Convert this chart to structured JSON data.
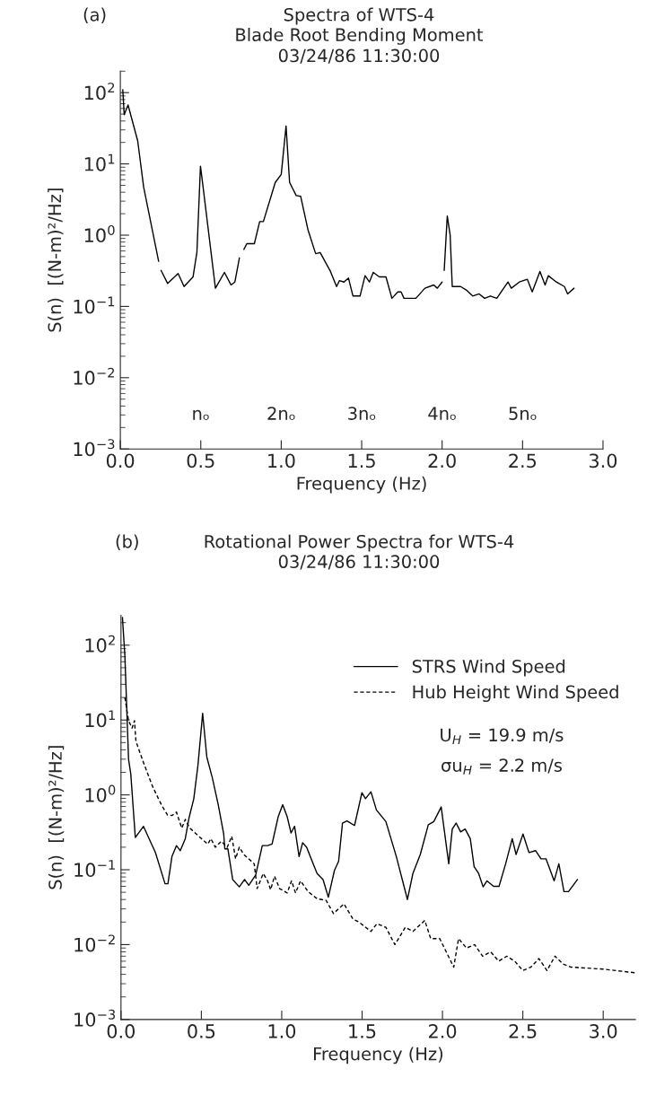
{
  "chart_data": [
    {
      "type": "line",
      "title": "Spectra of WTS-4",
      "subtitle": "Blade Root Bending Moment\n03/24/86 11:30:00",
      "xlabel": "Frequency (Hz)",
      "ylabel": "S(n)  [(N-m)²/Hz]",
      "annotations": [
        "(a)",
        "nₒ",
        "2nₒ",
        "3nₒ",
        "4nₒ",
        "5nₒ"
      ],
      "series": [
        {
          "color": "#000000",
          "x": [
            0.015,
            0.024,
            0.048,
            0.108,
            0.145,
            0.238,
            0.245,
            0.253,
            0.294,
            0.359,
            0.396,
            0.452,
            0.476,
            0.498,
            0.508,
            0.591,
            0.647,
            0.688,
            0.712,
            0.74,
            0.754,
            0.768,
            0.786,
            0.833,
            0.866,
            0.889,
            0.963,
            1.0,
            1.03,
            1.052,
            1.093,
            1.121,
            1.167,
            1.214,
            1.242,
            1.306,
            1.344,
            1.362,
            1.39,
            1.418,
            1.446,
            1.49,
            1.521,
            1.548,
            1.572,
            1.61,
            1.651,
            1.688,
            1.725,
            1.745,
            1.763,
            1.837,
            1.893,
            1.948,
            1.97,
            2.0,
            2.006,
            2.013,
            2.032,
            2.05,
            2.063,
            2.115,
            2.15,
            2.19,
            2.23,
            2.264,
            2.3,
            2.34,
            2.375,
            2.41,
            2.43,
            2.48,
            2.53,
            2.56,
            2.608,
            2.64,
            2.66,
            2.71,
            2.76,
            2.78,
            2.82
          ],
          "values": [
            110,
            49,
            67,
            21,
            4.7,
            0.43,
            null,
            0.32,
            0.21,
            0.29,
            0.19,
            0.26,
            0.58,
            9.3,
            6.2,
            0.18,
            0.3,
            0.2,
            0.22,
            0.48,
            null,
            0.63,
            0.76,
            0.76,
            1.55,
            1.55,
            5.5,
            7.1,
            34,
            5.5,
            3.6,
            3.5,
            1.17,
            0.55,
            0.57,
            0.31,
            0.19,
            0.23,
            0.22,
            0.25,
            0.14,
            0.14,
            0.27,
            0.22,
            0.3,
            0.26,
            0.26,
            0.13,
            0.16,
            0.16,
            0.13,
            0.13,
            0.18,
            0.2,
            0.18,
            0.22,
            null,
            0.32,
            1.86,
            1.0,
            0.19,
            0.19,
            0.17,
            0.14,
            0.15,
            0.13,
            0.14,
            0.13,
            0.17,
            0.22,
            0.18,
            0.22,
            0.24,
            0.16,
            0.31,
            0.2,
            0.27,
            0.22,
            0.19,
            0.15,
            0.18
          ]
        }
      ],
      "xlim": [
        0,
        3.0
      ],
      "xticks": [
        {
          "value": 0,
          "label": "0.0"
        },
        0.5,
        {
          "value": 1,
          "label": "1.0"
        },
        1.5,
        {
          "value": 2,
          "label": "2.0"
        },
        2.5,
        {
          "value": 3,
          "label": "3.0"
        }
      ],
      "ylim": [
        0.001,
        200
      ],
      "yticks": [
        {
          "value": 0.001,
          "label": "10$^{−3}$"
        },
        {
          "value": 0.01,
          "label": "10$^{−2}$"
        },
        {
          "value": 0.1,
          "label": "10$^{−1}$"
        },
        {
          "value": 1,
          "label": "10$^{0}$"
        },
        {
          "value": 10,
          "label": "10$^{1}$"
        },
        {
          "value": 100,
          "label": "10$^{2}$"
        }
      ],
      "log": "y",
      "grid": false,
      "legend": false,
      "line_style": "solid",
      "marker": "none"
    },
    {
      "type": "line",
      "title": "Rotational Power Spectra for WTS-4",
      "subtitle": "03/24/86 11:30:00",
      "xlabel": "Frequency (Hz)",
      "ylabel": "S(n)  [(N-m)²/Hz]",
      "annotations": [
        "(b)",
        "U$_{H}$ = 19.9 m/s",
        "σu$_{H}$ = 2.2 m/s"
      ],
      "series": [
        {
          "name": "STRS Wind Speed",
          "color": "#000000",
          "line_style": "solid",
          "x": [
            0.009,
            0.024,
            0.047,
            0.061,
            0.089,
            0.14,
            0.214,
            0.274,
            0.292,
            0.317,
            0.345,
            0.369,
            0.4,
            0.423,
            0.453,
            0.479,
            0.508,
            0.534,
            0.568,
            0.605,
            0.639,
            0.646,
            0.665,
            0.695,
            0.736,
            0.769,
            0.795,
            0.838,
            0.879,
            0.912,
            0.94,
            0.978,
            1.006,
            1.034,
            1.058,
            1.08,
            1.108,
            1.13,
            1.155,
            1.183,
            1.22,
            1.257,
            1.29,
            1.328,
            1.354,
            1.378,
            1.406,
            1.453,
            1.499,
            1.521,
            1.555,
            1.589,
            1.648,
            1.713,
            1.782,
            1.816,
            1.862,
            1.912,
            1.946,
            1.992,
            2.039,
            2.061,
            2.085,
            2.113,
            2.141,
            2.173,
            2.197,
            2.225,
            2.253,
            2.277,
            2.318,
            2.352,
            2.393,
            2.434,
            2.458,
            2.501,
            2.538,
            2.579,
            2.613,
            2.644,
            2.695,
            2.724,
            2.756,
            2.784,
            2.84
          ],
          "values": [
            235,
            74,
            3.0,
            1.9,
            0.27,
            0.38,
            0.17,
            0.065,
            0.065,
            0.15,
            0.21,
            0.18,
            0.26,
            0.49,
            0.89,
            2.5,
            12.3,
            3.2,
            1.7,
            0.74,
            0.3,
            0.19,
            0.19,
            0.074,
            0.059,
            0.074,
            0.062,
            0.085,
            0.21,
            0.21,
            0.22,
            0.51,
            0.74,
            0.51,
            0.31,
            0.38,
            0.15,
            0.23,
            0.2,
            0.14,
            0.089,
            0.074,
            0.043,
            0.098,
            0.13,
            0.42,
            0.45,
            0.39,
            1.07,
            0.89,
            1.1,
            0.63,
            0.44,
            0.15,
            0.04,
            0.089,
            0.16,
            0.4,
            0.44,
            0.69,
            0.12,
            0.35,
            0.42,
            0.32,
            0.35,
            0.26,
            0.11,
            0.089,
            0.059,
            0.071,
            0.06,
            0.06,
            0.12,
            0.26,
            0.16,
            0.3,
            0.17,
            0.18,
            0.14,
            0.14,
            0.071,
            0.12,
            0.051,
            0.051,
            0.074
          ]
        },
        {
          "name": "Hub Height Wind Speed",
          "color": "#000000",
          "line_style": "dashed",
          "x": [
            0.024,
            0.047,
            0.069,
            0.084,
            0.093,
            0.14,
            0.196,
            0.251,
            0.289,
            0.317,
            0.345,
            0.378,
            0.4,
            0.428,
            0.484,
            0.54,
            0.559,
            0.587,
            0.624,
            0.661,
            0.689,
            0.713,
            0.736,
            0.764,
            0.829,
            0.847,
            0.885,
            0.912,
            0.931,
            0.955,
            0.987,
            1.034,
            1.061,
            1.086,
            1.117,
            1.164,
            1.22,
            1.276,
            1.322,
            1.387,
            1.443,
            1.48,
            1.555,
            1.592,
            1.648,
            1.704,
            1.769,
            1.816,
            1.89,
            1.927,
            1.983,
            2.07,
            2.1,
            2.15,
            2.2,
            2.25,
            2.3,
            2.35,
            2.4,
            2.45,
            2.5,
            2.55,
            2.6,
            2.65,
            2.7,
            2.75,
            2.8,
            3.0,
            3.2
          ],
          "values": [
            20,
            9.8,
            7.8,
            9.8,
            5.2,
            2.7,
            1.3,
            0.74,
            0.54,
            0.53,
            0.59,
            0.36,
            0.47,
            0.36,
            0.28,
            0.22,
            0.26,
            0.2,
            0.24,
            0.2,
            0.28,
            0.14,
            0.2,
            0.16,
            0.12,
            0.056,
            0.089,
            0.071,
            0.054,
            0.082,
            0.056,
            0.049,
            0.071,
            0.049,
            0.071,
            0.051,
            0.041,
            0.039,
            0.026,
            0.035,
            0.022,
            0.02,
            0.015,
            0.019,
            0.017,
            0.01,
            0.017,
            0.015,
            0.021,
            0.012,
            0.012,
            0.005,
            0.012,
            0.009,
            0.01,
            0.007,
            0.008,
            0.006,
            0.007,
            0.006,
            0.0045,
            0.005,
            0.0065,
            0.0045,
            0.007,
            0.0055,
            0.005,
            0.0047,
            0.0042
          ]
        }
      ],
      "xlim": [
        0,
        3.2
      ],
      "xticks": [
        {
          "value": 0,
          "label": "0.0"
        },
        0.5,
        {
          "value": 1,
          "label": "1.0"
        },
        1.5,
        {
          "value": 2,
          "label": "2.0"
        },
        2.5,
        {
          "value": 3,
          "label": "3.0"
        }
      ],
      "ylim": [
        0.001,
        250
      ],
      "yticks": [
        {
          "value": 0.001,
          "label": "10$^{−3}$"
        },
        {
          "value": 0.01,
          "label": "10$^{−2}$"
        },
        {
          "value": 0.1,
          "label": "10$^{−1}$"
        },
        {
          "value": 1,
          "label": "10$^{0}$"
        },
        {
          "value": 10,
          "label": "10$^{1}$"
        },
        {
          "value": 100,
          "label": "10$^{2}$"
        }
      ],
      "log": "y",
      "grid": false,
      "legend": "top right",
      "marker": "none"
    }
  ]
}
